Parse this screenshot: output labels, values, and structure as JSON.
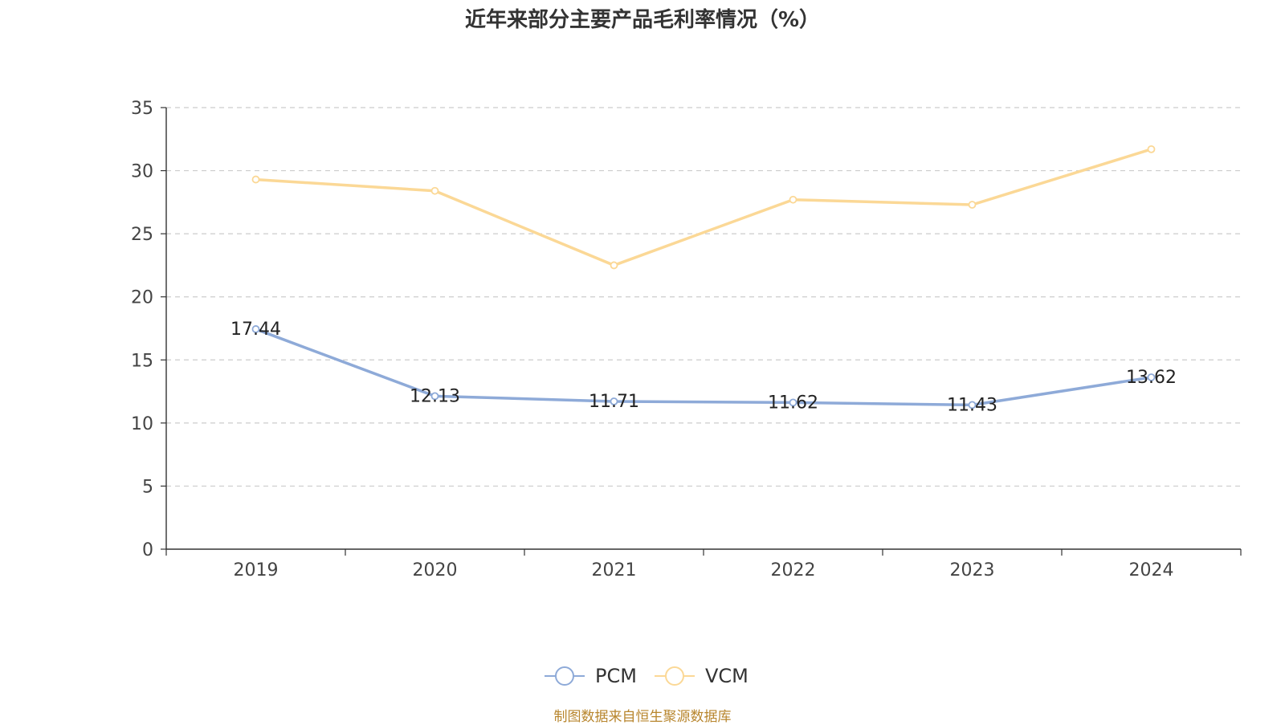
{
  "chart_data": {
    "type": "line",
    "title": "近年来部分主要产品毛利率情况（%）",
    "categories": [
      "2019",
      "2020",
      "2021",
      "2022",
      "2023",
      "2024"
    ],
    "ylim": [
      0,
      35
    ],
    "yticks": [
      "0",
      "5",
      "10",
      "15",
      "20",
      "25",
      "30",
      "35"
    ],
    "grid": true,
    "legend_position": "bottom-center",
    "series": [
      {
        "name": "PCM",
        "color": "#8eaad8",
        "values": [
          17.44,
          12.13,
          11.71,
          11.62,
          11.43,
          13.62
        ],
        "labels": [
          "17.44",
          "12.13",
          "11.71",
          "11.62",
          "11.43",
          "13.62"
        ]
      },
      {
        "name": "VCM",
        "color": "#fbd896",
        "values": [
          29.3,
          28.4,
          22.5,
          27.7,
          27.3,
          31.7
        ]
      }
    ]
  },
  "source_note": "制图数据来自恒生聚源数据库"
}
